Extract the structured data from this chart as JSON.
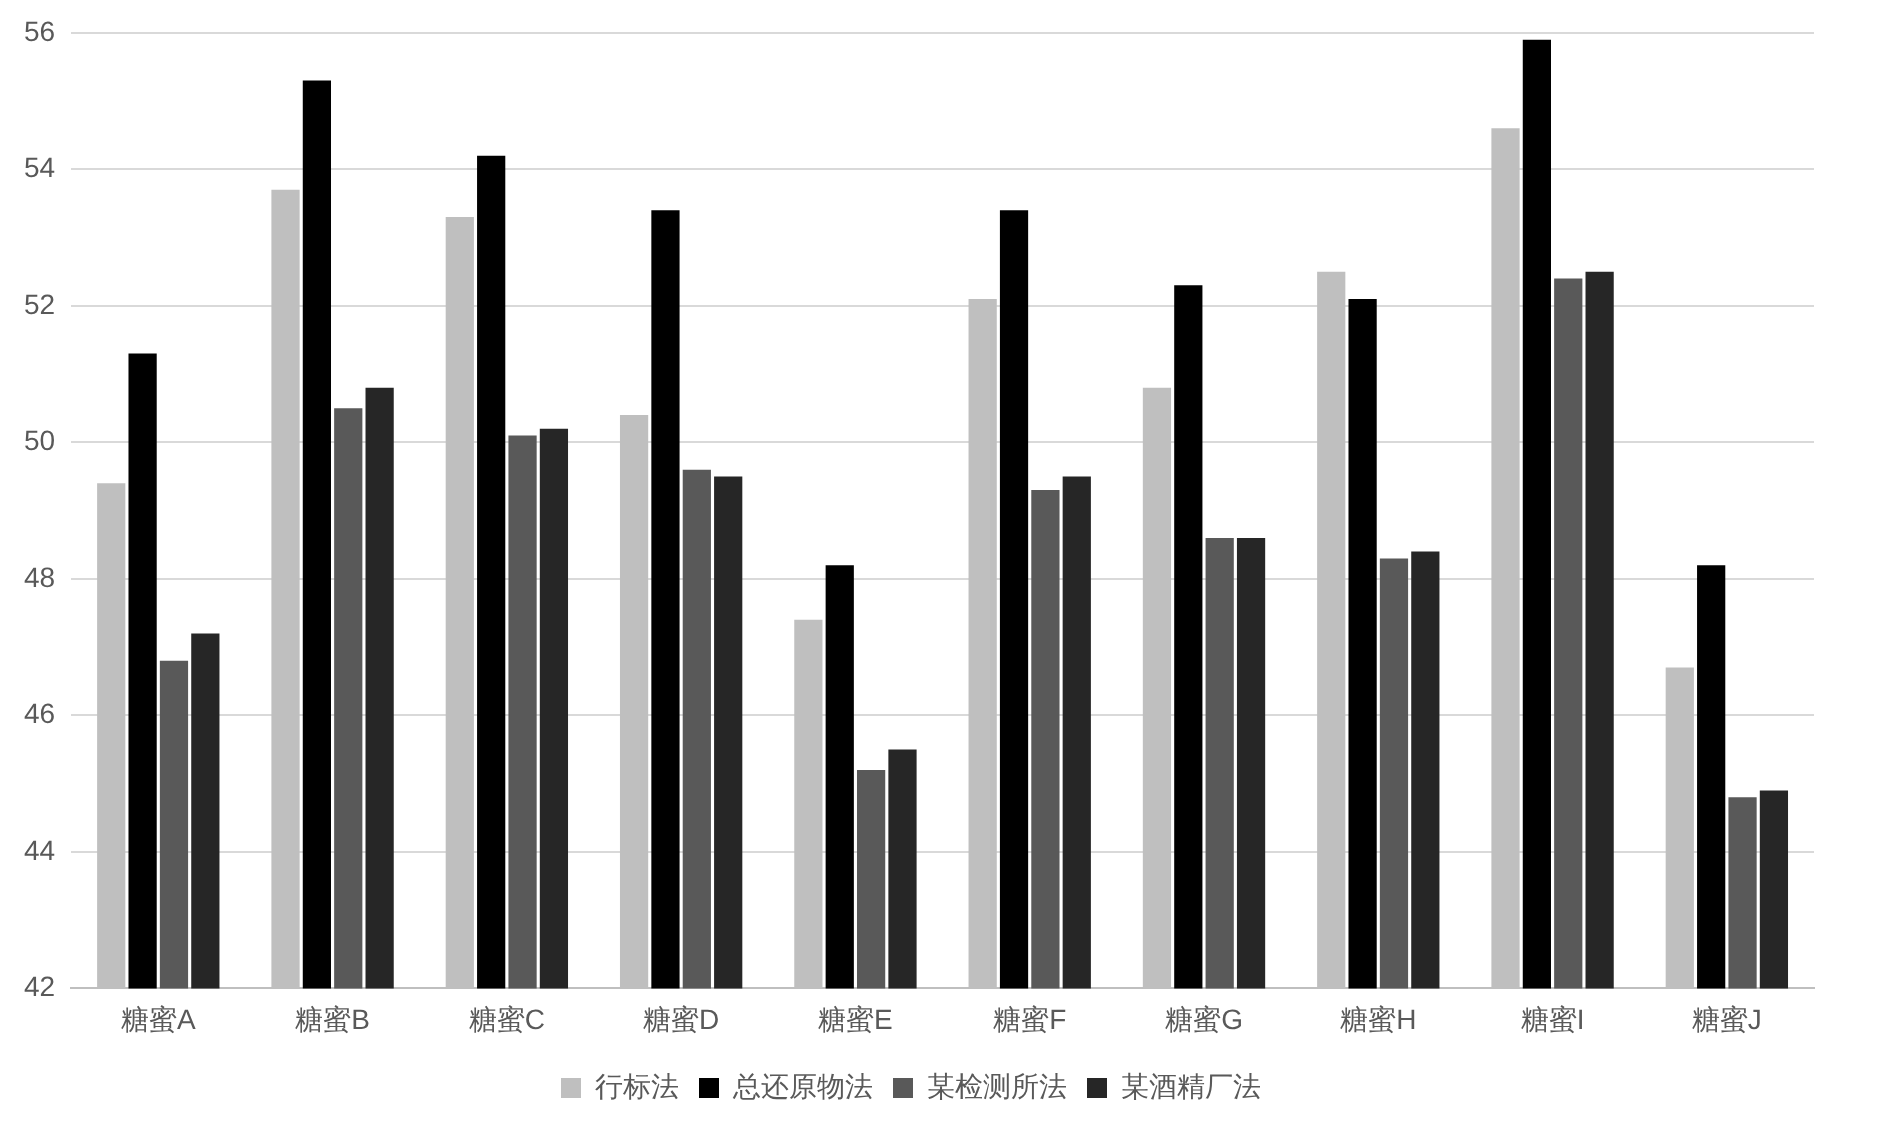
{
  "chart_data": {
    "type": "bar",
    "categories": [
      "糖蜜A",
      "糖蜜B",
      "糖蜜C",
      "糖蜜D",
      "糖蜜E",
      "糖蜜F",
      "糖蜜G",
      "糖蜜H",
      "糖蜜I",
      "糖蜜J"
    ],
    "series": [
      {
        "name": "行标法",
        "color": "#bfbfbf",
        "values": [
          49.4,
          53.7,
          53.3,
          50.4,
          47.4,
          52.1,
          50.8,
          52.5,
          54.6,
          46.7
        ]
      },
      {
        "name": "总还原物法",
        "color": "#000000",
        "values": [
          51.3,
          55.3,
          54.2,
          53.4,
          48.2,
          53.4,
          52.3,
          52.1,
          55.9,
          48.2
        ]
      },
      {
        "name": "某检测所法",
        "color": "#595959",
        "values": [
          46.8,
          50.5,
          50.1,
          49.6,
          45.2,
          49.3,
          48.6,
          48.3,
          52.4,
          44.8
        ]
      },
      {
        "name": "某酒精厂法",
        "color": "#262626",
        "values": [
          47.2,
          50.8,
          50.2,
          49.5,
          45.5,
          49.5,
          48.6,
          48.4,
          52.5,
          44.9
        ]
      }
    ],
    "ylim": [
      42,
      56
    ],
    "yticks": [
      42,
      44,
      46,
      48,
      50,
      52,
      54,
      56
    ],
    "grid": "y",
    "legend": "bottom"
  }
}
